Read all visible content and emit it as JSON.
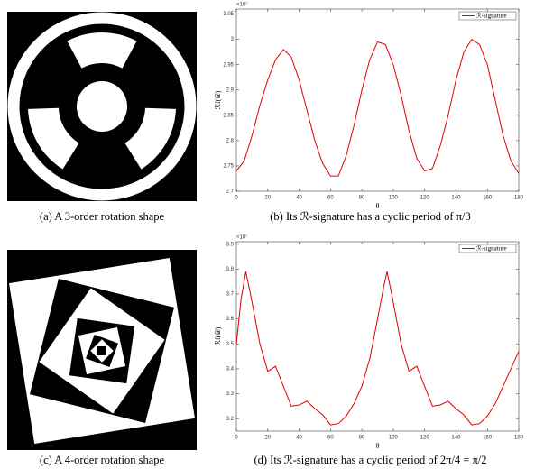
{
  "images": [
    {
      "caption": "(a) A 3-order rotation shape"
    },
    {
      "caption": "(c) A 4-order rotation shape"
    }
  ],
  "chart_data": [
    {
      "type": "line",
      "caption": "(b) Its ℛ-signature has a cyclic period of π/3",
      "y_label": "ℛf(𝒟)",
      "x_label": "θ",
      "multiplier": "×10⁷",
      "xlim": [
        0,
        180
      ],
      "xticks": [
        0,
        20,
        40,
        60,
        80,
        100,
        120,
        140,
        160,
        180
      ],
      "ylim": [
        2.7,
        3.06
      ],
      "yticks": [
        2.7,
        2.75,
        2.8,
        2.85,
        2.9,
        2.95,
        3,
        3.05
      ],
      "legend": "top-right",
      "x": [
        0,
        5,
        10,
        15,
        20,
        25,
        30,
        35,
        40,
        45,
        50,
        55,
        60,
        65,
        70,
        75,
        80,
        85,
        90,
        95,
        100,
        105,
        110,
        115,
        120,
        125,
        130,
        135,
        140,
        145,
        150,
        155,
        160,
        165,
        170,
        175,
        180
      ],
      "series": [
        {
          "name": "ℛ-signature",
          "color": "#e00000",
          "values": [
            2.74,
            2.76,
            2.81,
            2.87,
            2.92,
            2.96,
            2.98,
            2.965,
            2.92,
            2.86,
            2.8,
            2.755,
            2.73,
            2.73,
            2.77,
            2.83,
            2.9,
            2.96,
            2.995,
            2.99,
            2.95,
            2.89,
            2.82,
            2.765,
            2.74,
            2.745,
            2.79,
            2.85,
            2.92,
            2.975,
            3.0,
            2.99,
            2.95,
            2.88,
            2.81,
            2.76,
            2.735
          ]
        }
      ]
    },
    {
      "type": "line",
      "caption": "(d) Its ℛ-signature has a cyclic period of 2π/4 = π/2",
      "y_label": "ℛf(𝒟)",
      "x_label": "θ",
      "multiplier": "×10⁷",
      "xlim": [
        0,
        180
      ],
      "xticks": [
        0,
        20,
        40,
        60,
        80,
        100,
        120,
        140,
        160,
        180
      ],
      "ylim": [
        3.15,
        3.91
      ],
      "yticks": [
        3.2,
        3.3,
        3.4,
        3.5,
        3.6,
        3.7,
        3.8,
        3.9
      ],
      "legend": "top-right",
      "x": [
        0,
        3,
        6,
        9,
        12,
        15,
        20,
        25,
        30,
        35,
        40,
        45,
        50,
        55,
        60,
        65,
        70,
        75,
        80,
        85,
        90,
        93,
        96,
        99,
        102,
        105,
        110,
        115,
        120,
        125,
        130,
        135,
        140,
        145,
        150,
        155,
        160,
        165,
        170,
        175,
        180
      ],
      "series": [
        {
          "name": "ℛ-signature",
          "color": "#e00000",
          "values": [
            3.5,
            3.68,
            3.79,
            3.7,
            3.6,
            3.5,
            3.39,
            3.41,
            3.33,
            3.25,
            3.255,
            3.27,
            3.24,
            3.215,
            3.175,
            3.18,
            3.21,
            3.26,
            3.33,
            3.44,
            3.6,
            3.7,
            3.79,
            3.7,
            3.6,
            3.5,
            3.39,
            3.41,
            3.33,
            3.25,
            3.255,
            3.27,
            3.24,
            3.215,
            3.175,
            3.18,
            3.21,
            3.26,
            3.33,
            3.4,
            3.47
          ]
        }
      ]
    }
  ]
}
